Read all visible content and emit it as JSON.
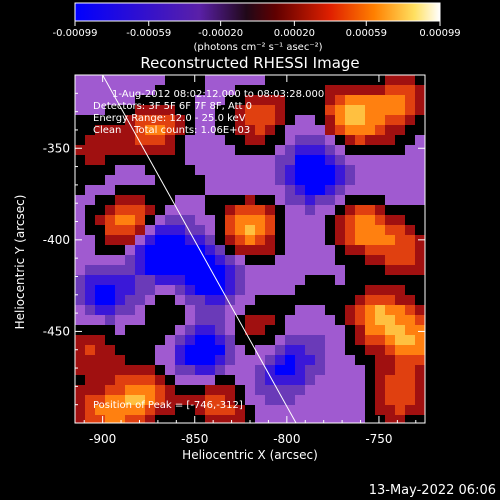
{
  "colorbar": {
    "tick_labels": [
      "-0.00099",
      "-0.00059",
      "-0.00020",
      "0.00020",
      "0.00059",
      "0.00099"
    ],
    "unit_label": "(photons cm⁻² s⁻¹ asec⁻²)",
    "range": [
      -0.00099,
      0.00099
    ]
  },
  "annotations": {
    "time_range": "1-Aug-2012 08:02:12.000 to 08:03:28.000",
    "detectors": "Detectors: 3F 5F 6F 7F 8F, Att 0",
    "energy_range": "Energy Range: 12.0 - 25.0 keV",
    "clean_counts": "Clean    Total counts: 1.06E+03",
    "peak": "Position of Peak = [-746,-312]"
  },
  "footer": {
    "timestamp": "13-May-2022 06:06"
  },
  "chart_data": {
    "type": "heatmap",
    "title": "Reconstructed RHESSI Image",
    "xlabel": "Heliocentric X (arcsec)",
    "ylabel": "Heliocentric Y (arcsec)",
    "xlim": [
      -915,
      -725
    ],
    "ylim": [
      -500,
      -310
    ],
    "x_ticks": [
      -900,
      -850,
      -800,
      -750
    ],
    "y_ticks": [
      -350,
      -400,
      -450
    ],
    "x_tick_labels": [
      "-900",
      "-850",
      "-800",
      "-750"
    ],
    "y_tick_labels": [
      "-350",
      "-400",
      "-450"
    ],
    "colormap": [
      "#0000ff",
      "#3a18d8",
      "#6a3ab8",
      "#a05ad0",
      "#000000",
      "#a01010",
      "#e04010",
      "#ff8010",
      "#ffc040",
      "#ffffff"
    ],
    "limb_line": {
      "x": [
        -900,
        -795
      ],
      "y": [
        -310,
        -500
      ]
    },
    "sources": [
      {
        "x": -870,
        "y": -340,
        "v": 0.00075
      },
      {
        "x": -815,
        "y": -330,
        "v": 0.0006
      },
      {
        "x": -765,
        "y": -332,
        "v": 0.00095
      },
      {
        "x": -740,
        "y": -325,
        "v": 0.0007
      },
      {
        "x": -905,
        "y": -350,
        "v": 0.0004
      },
      {
        "x": -885,
        "y": -390,
        "v": 0.0008
      },
      {
        "x": -820,
        "y": -392,
        "v": 0.00085
      },
      {
        "x": -760,
        "y": -392,
        "v": 0.00075
      },
      {
        "x": -735,
        "y": -405,
        "v": 0.0006
      },
      {
        "x": -860,
        "y": -445,
        "v": 0.0004
      },
      {
        "x": -815,
        "y": -445,
        "v": 0.00035
      },
      {
        "x": -750,
        "y": -440,
        "v": 0.0009
      },
      {
        "x": -730,
        "y": -455,
        "v": 0.0008
      },
      {
        "x": -880,
        "y": -485,
        "v": 0.0009
      },
      {
        "x": -835,
        "y": -490,
        "v": 0.0006
      },
      {
        "x": -740,
        "y": -485,
        "v": 0.0007
      },
      {
        "x": -910,
        "y": -460,
        "v": 0.0005
      },
      {
        "x": -900,
        "y": -495,
        "v": 0.00065
      }
    ],
    "sinks": [
      {
        "x": -785,
        "y": -365,
        "v": -0.0009
      },
      {
        "x": -870,
        "y": -405,
        "v": -0.00095
      },
      {
        "x": -845,
        "y": -420,
        "v": -0.0009
      },
      {
        "x": -845,
        "y": -460,
        "v": -0.0008
      },
      {
        "x": -800,
        "y": -470,
        "v": -0.0006
      },
      {
        "x": -900,
        "y": -430,
        "v": -0.0005
      }
    ]
  }
}
